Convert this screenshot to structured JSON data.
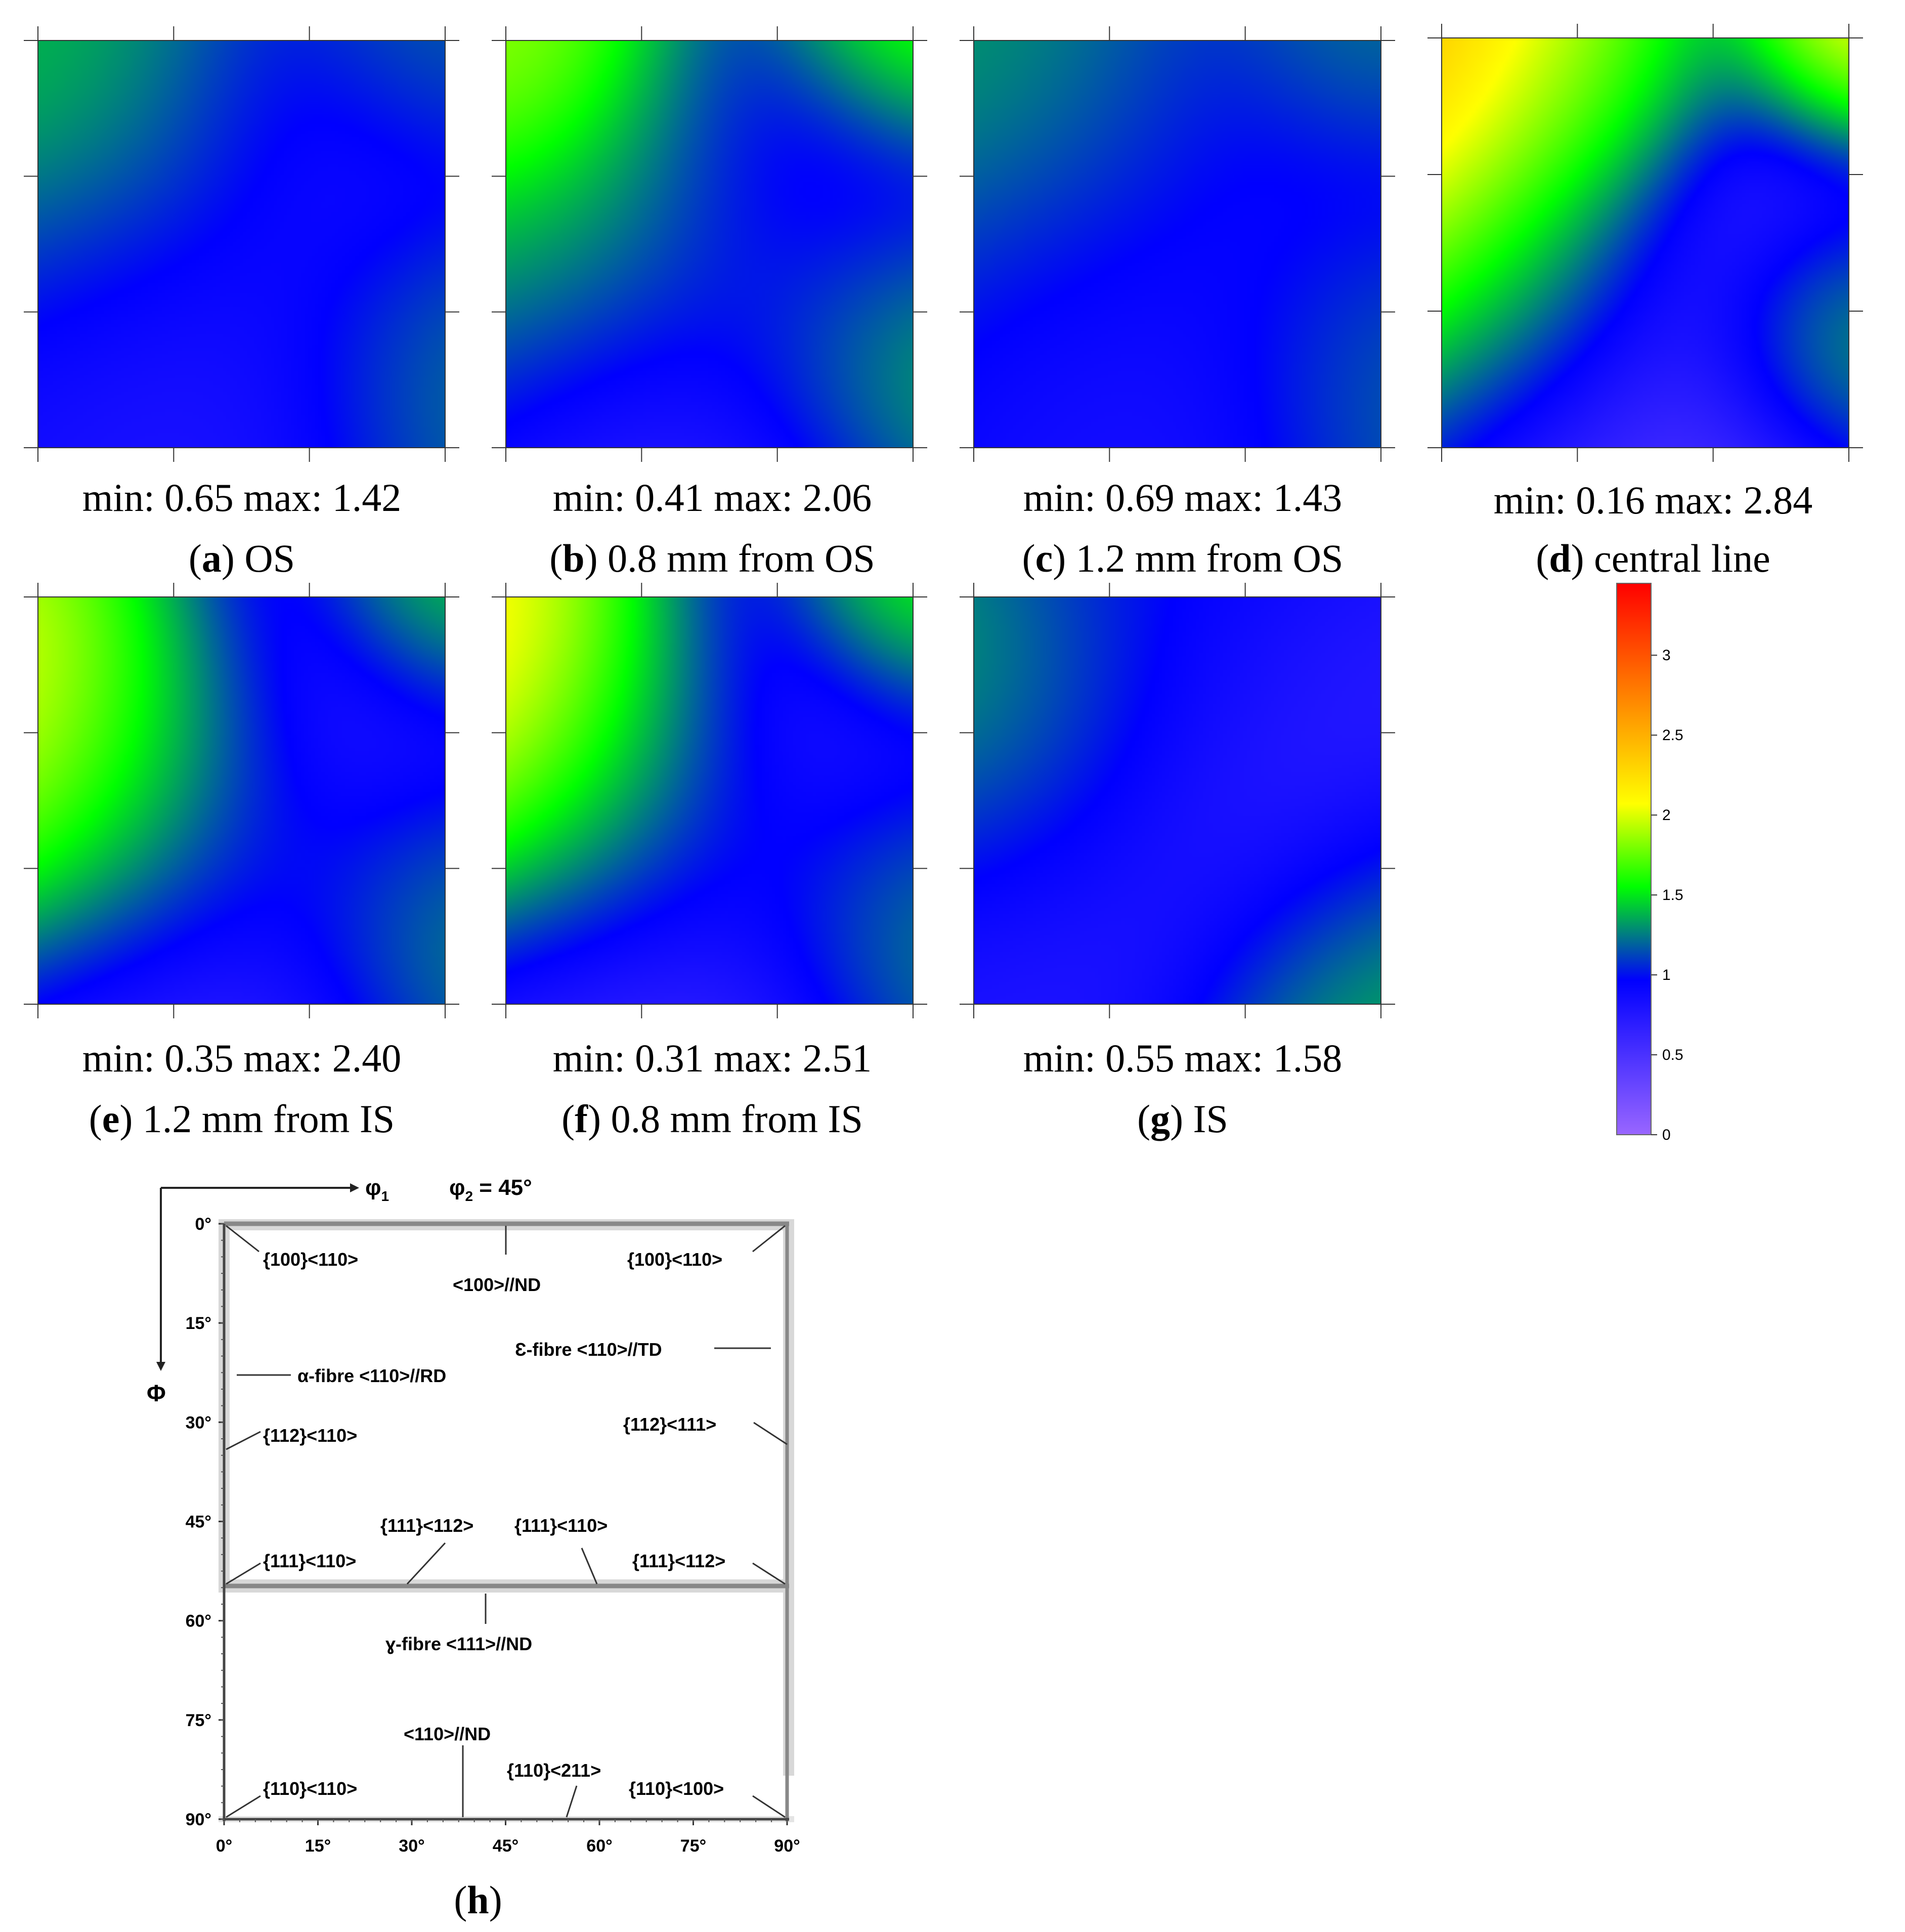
{
  "colormap": {
    "stops": [
      "#9966ff",
      "#0000ff",
      "#00ff00",
      "#ffff00",
      "#ff0000"
    ],
    "positions": [
      0.0,
      0.28,
      0.45,
      0.6,
      1.0
    ]
  },
  "panels": [
    {
      "letter": "a",
      "caption": "OS",
      "stats": "min: 0.65 max: 1.42",
      "blobs": [
        [
          0.15,
          0.25,
          0.35,
          1.5
        ],
        [
          0.7,
          0.3,
          0.3,
          0.7
        ],
        [
          0.2,
          0.75,
          0.3,
          0.75
        ],
        [
          0.95,
          0.8,
          0.25,
          1.35
        ],
        [
          0.95,
          0.0,
          0.2,
          1.3
        ],
        [
          0.5,
          0.9,
          0.3,
          0.75
        ]
      ],
      "base": 1.05
    },
    {
      "letter": "b",
      "caption": "0.8 mm from OS",
      "stats": "min: 0.41 max: 2.06",
      "blobs": [
        [
          0.0,
          0.0,
          0.2,
          2.0
        ],
        [
          1.0,
          0.0,
          0.2,
          2.0
        ],
        [
          0.3,
          0.4,
          0.35,
          1.6
        ],
        [
          0.8,
          0.35,
          0.3,
          0.5
        ],
        [
          0.5,
          0.95,
          0.35,
          0.55
        ],
        [
          0.95,
          0.75,
          0.25,
          1.7
        ]
      ],
      "base": 1.1
    },
    {
      "letter": "c",
      "caption": "1.2 mm from OS",
      "stats": "min: 0.69 max: 1.43",
      "blobs": [
        [
          0.15,
          0.25,
          0.4,
          1.4
        ],
        [
          0.75,
          0.35,
          0.35,
          0.75
        ],
        [
          0.2,
          0.75,
          0.3,
          0.8
        ],
        [
          0.95,
          0.8,
          0.25,
          1.35
        ],
        [
          0.95,
          0.0,
          0.2,
          1.4
        ],
        [
          0.5,
          0.9,
          0.3,
          0.75
        ]
      ],
      "base": 1.05
    },
    {
      "letter": "d",
      "caption": "central line",
      "stats": "min: 0.16 max: 2.84",
      "blobs": [
        [
          0.0,
          0.1,
          0.35,
          2.7
        ],
        [
          0.4,
          0.1,
          0.2,
          2.0
        ],
        [
          1.0,
          0.0,
          0.2,
          2.8
        ],
        [
          0.75,
          0.35,
          0.35,
          0.2
        ],
        [
          0.5,
          0.95,
          0.35,
          0.3
        ],
        [
          0.95,
          0.7,
          0.2,
          1.9
        ],
        [
          0.2,
          0.55,
          0.3,
          1.7
        ]
      ],
      "base": 1.4
    },
    {
      "letter": "e",
      "caption": "1.2 mm from IS",
      "stats": "min: 0.35 max: 2.40",
      "blobs": [
        [
          0.0,
          0.35,
          0.3,
          2.4
        ],
        [
          0.3,
          0.5,
          0.3,
          1.6
        ],
        [
          1.0,
          0.0,
          0.2,
          1.8
        ],
        [
          0.75,
          0.35,
          0.35,
          0.4
        ],
        [
          0.4,
          0.95,
          0.35,
          0.5
        ],
        [
          0.95,
          0.75,
          0.25,
          1.6
        ]
      ],
      "base": 1.1
    },
    {
      "letter": "f",
      "caption": "0.8 mm from IS",
      "stats": "min: 0.31 max: 2.51",
      "blobs": [
        [
          0.0,
          0.25,
          0.3,
          2.5
        ],
        [
          0.3,
          0.5,
          0.3,
          1.6
        ],
        [
          1.0,
          0.0,
          0.2,
          2.0
        ],
        [
          0.75,
          0.35,
          0.35,
          0.4
        ],
        [
          0.4,
          0.95,
          0.35,
          0.45
        ],
        [
          0.95,
          0.75,
          0.25,
          1.6
        ]
      ],
      "base": 1.1
    },
    {
      "letter": "g",
      "caption": "IS",
      "stats": "min: 0.55 max: 1.58",
      "blobs": [
        [
          0.05,
          0.3,
          0.3,
          1.55
        ],
        [
          0.75,
          0.4,
          0.35,
          0.6
        ],
        [
          0.2,
          0.75,
          0.35,
          0.7
        ],
        [
          1.0,
          1.0,
          0.3,
          1.5
        ],
        [
          0.5,
          0.0,
          0.3,
          1.0
        ]
      ],
      "base": 1.0
    }
  ],
  "colorbar": {
    "ticks": [
      "3",
      "2.5",
      "2",
      "1.5",
      "1",
      "0.5",
      "0"
    ],
    "min": 0,
    "max": 3.45
  },
  "legend_h": {
    "letter": "h",
    "phi1_label": "φ",
    "phi1_sub": "1",
    "phi2_label": "φ",
    "phi2_sub": "2",
    "phi2_value": " = 45°",
    "Phi_label": "Φ",
    "y_ticks": [
      "0°",
      "15°",
      "30°",
      "45°",
      "60°",
      "75°",
      "90°"
    ],
    "x_ticks": [
      "0°",
      "15°",
      "30°",
      "45°",
      "60°",
      "75°",
      "90°"
    ],
    "labels": {
      "tl_100_110": "{100}<110>",
      "tr_100_110": "{100}<110>",
      "nd_100": "<100>//ND",
      "eps_fibre": "Ɛ-fibre <110>//TD",
      "alpha_fibre": "α-fibre <110>//RD",
      "l_112_110": "{112}<110>",
      "r_112_111": "{112}<111>",
      "m_111_112": "{111}<112>",
      "m_111_110": "{111}<110>",
      "l_111_110": "{111}<110>",
      "r_111_112": "{111}<112>",
      "gamma_fibre": "ɣ-fibre <111>//ND",
      "nd_110": "<110>//ND",
      "l_110_110": "{110}<110>",
      "m_110_211": "{110}<211>",
      "r_110_100": "{110}<100>"
    }
  }
}
